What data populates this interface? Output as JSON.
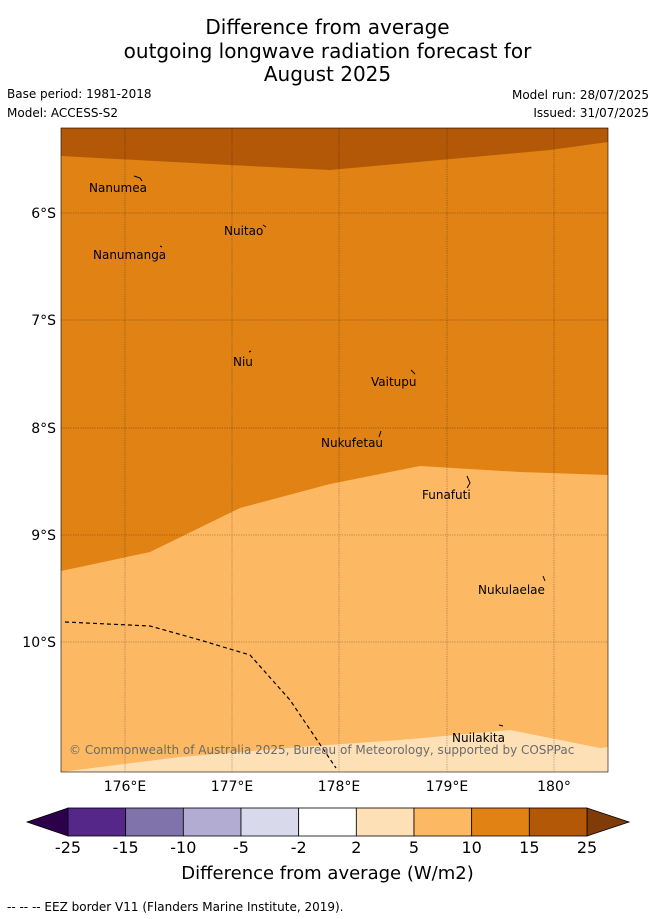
{
  "title_lines": [
    "Difference from average",
    "outgoing longwave radiation forecast for",
    "August 2025"
  ],
  "meta": {
    "base_period": "Base period: 1981-2018",
    "model": "Model: ACCESS-S2",
    "model_run": "Model run: 28/07/2025",
    "issued": "Issued: 31/07/2025"
  },
  "map": {
    "lat_ticks": [
      "6°S",
      "7°S",
      "8°S",
      "9°S",
      "10°S"
    ],
    "lon_ticks": [
      "176°E",
      "177°E",
      "178°E",
      "179°E",
      "180°"
    ],
    "islands": [
      "Nanumea",
      "Nuitao",
      "Nanumanga",
      "Niu",
      "Vaitupu",
      "Nukufetau",
      "Funafuti",
      "Nukulaelae",
      "Nuilakita"
    ],
    "copyright": "© Commonwealth of Australia 2025, Bureau of Meteorology, supported by COSPPac",
    "legend_line": "EEZ border",
    "shading_bands": [
      {
        "range": "15 to 25",
        "color": "#b35806"
      },
      {
        "range": "10 to 15",
        "color": "#e08214"
      },
      {
        "range": "5 to 10",
        "color": "#fdb863"
      },
      {
        "range": "2 to 5",
        "color": "#fee0b6"
      }
    ]
  },
  "colorbar": {
    "ticks": [
      "-25",
      "-15",
      "-10",
      "-5",
      "-2",
      "2",
      "5",
      "10",
      "15",
      "25"
    ],
    "colors": [
      "#542788",
      "#8073ac",
      "#b2abd2",
      "#d8daeb",
      "#ffffff",
      "#fee0b6",
      "#fdb863",
      "#e08214",
      "#b35806"
    ],
    "under_color": "#2d004b",
    "over_color": "#7f3b08",
    "title": "Difference from average (W/m2)"
  },
  "footer": "--  --  -- EEZ border V11 (Flanders Marine Institute, 2019)."
}
